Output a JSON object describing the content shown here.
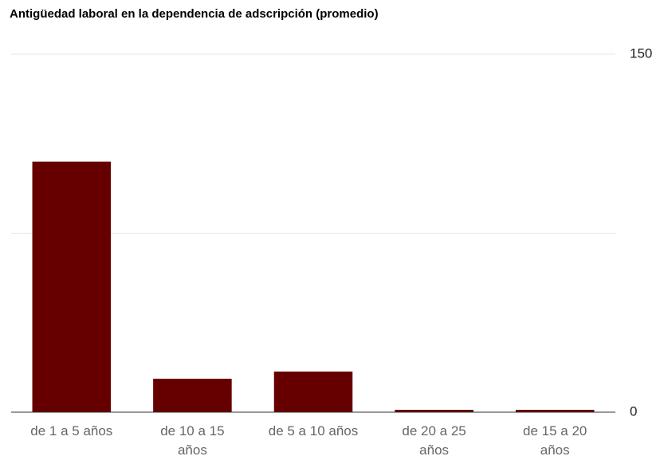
{
  "chart_data": {
    "type": "bar",
    "title": "Antigüedad laboral en la dependencia de adscripción (promedio)",
    "categories": [
      "de 1 a 5 años",
      "de 10 a 15 años",
      "de 5 a 10 años",
      "de 20 a 25 años",
      "de 15 a 20 años"
    ],
    "values": [
      105,
      14,
      17,
      1,
      1
    ],
    "color": "#660000",
    "ylim": [
      0,
      150
    ],
    "yticks": [
      0,
      150
    ],
    "gridlines": [
      75,
      150
    ],
    "grid": true,
    "axis_side": "right"
  }
}
